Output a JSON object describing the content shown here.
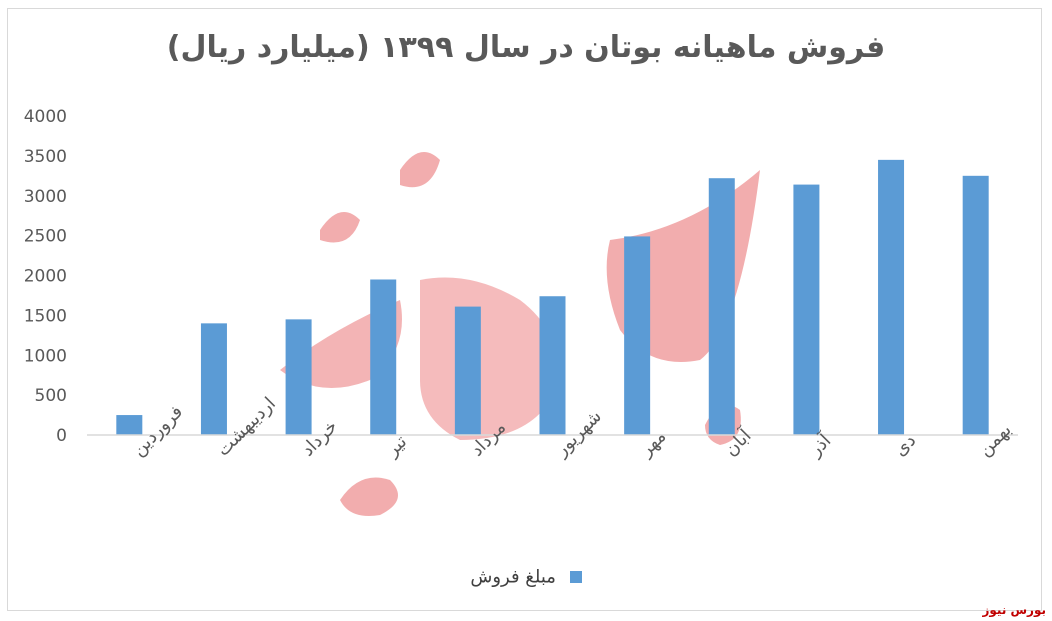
{
  "chart_data": {
    "type": "bar",
    "title": "فروش ماهیانه بوتان در سال ۱۳۹۹ (میلیارد ریال)",
    "categories": [
      "فروردین",
      "اردیبهشت",
      "خرداد",
      "تیر",
      "مرداد",
      "شهریور",
      "مهر",
      "آبان",
      "آذر",
      "دی",
      "بهمن"
    ],
    "series": [
      {
        "name": "مبلغ فروش",
        "values": [
          250,
          1400,
          1450,
          1950,
          1610,
          1740,
          2490,
          3220,
          3140,
          3450,
          3250
        ],
        "color": "#5b9bd5"
      }
    ],
    "ylim": [
      0,
      4000
    ],
    "yticks": [
      "0",
      "500",
      "1000",
      "1500",
      "2000",
      "2500",
      "3000",
      "3500",
      "4000"
    ],
    "grid": false,
    "legend_position": "bottom"
  },
  "watermark": {
    "text": "بورس نیوز",
    "color": "#e8696b"
  },
  "footer_mark": "بورس نیوز"
}
